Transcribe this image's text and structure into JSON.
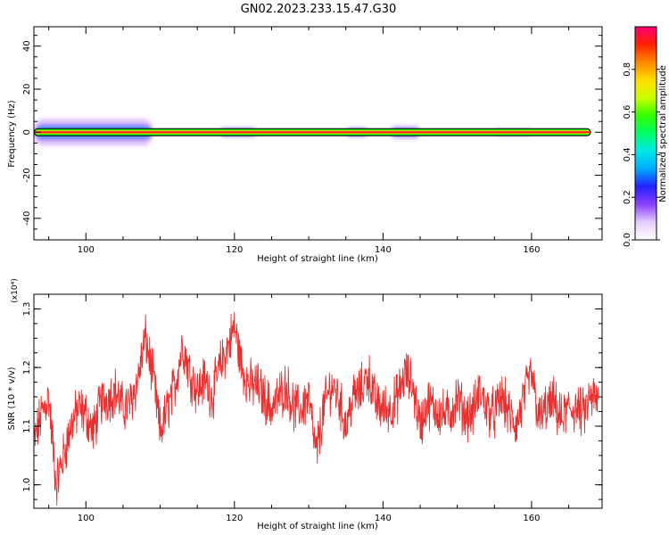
{
  "chart_data": [
    {
      "type": "heatmap",
      "title": "GN02.2023.233.15.47.G30",
      "xlabel": "Height of straight line (km)",
      "ylabel": "Frequency (Hz)",
      "xlim": [
        93,
        169.5
      ],
      "ylim": [
        -50,
        49
      ],
      "x_ticks": [
        100,
        120,
        140,
        160
      ],
      "y_ticks": [
        -40,
        -20,
        0,
        20,
        40
      ],
      "grid": false,
      "dominant_frequency_hz": 0,
      "x_extent_of_signal": [
        93,
        168
      ],
      "spread_regions": [
        {
          "x_from": 93,
          "x_to": 109,
          "spread_hz": 4
        },
        {
          "x_from": 118,
          "x_to": 123,
          "spread_hz": 1.5
        },
        {
          "x_from": 135,
          "x_to": 138,
          "spread_hz": 1.5
        },
        {
          "x_from": 141,
          "x_to": 145,
          "spread_hz": 2
        },
        {
          "x_from": 155,
          "x_to": 160,
          "spread_hz": 1
        }
      ],
      "colorbar": {
        "label": "Normalized spectral amplitude",
        "range": [
          0,
          1
        ],
        "ticks": [
          "0.0",
          "0.2",
          "0.4",
          "0.6",
          "0.8"
        ],
        "colors": [
          "#ffffff",
          "#e6ccff",
          "#8a3fff",
          "#2222ff",
          "#00aaff",
          "#00e6e6",
          "#00ff66",
          "#33ff00",
          "#ccff00",
          "#ffdd00",
          "#ff8800",
          "#ff2200",
          "#ff0077"
        ]
      }
    },
    {
      "type": "line",
      "xlabel": "Height of straight line (km)",
      "ylabel": "SNR (10 * v/v)",
      "y_multiplier": "(x10⁴)",
      "xlim": [
        93,
        169.5
      ],
      "ylim": [
        0.96,
        1.325
      ],
      "x_ticks": [
        100,
        120,
        140,
        160
      ],
      "y_ticks": [
        "1.0",
        "1.1",
        "1.2",
        "1.3"
      ],
      "grid": false,
      "series_color": "#e83030",
      "series": [
        {
          "x": [
            93,
            94,
            95,
            96,
            97,
            98,
            99,
            100,
            101,
            102,
            103,
            104,
            105,
            106,
            107,
            108,
            109,
            110,
            111,
            112,
            113,
            114,
            115,
            116,
            117,
            118,
            119,
            120,
            121,
            122,
            123,
            124,
            125,
            126,
            127,
            128,
            129,
            130,
            131,
            132,
            133,
            134,
            135,
            136,
            137,
            138,
            139,
            140,
            141,
            142,
            143,
            144,
            145,
            146,
            147,
            148,
            149,
            150,
            151,
            152,
            153,
            154,
            155,
            156,
            157,
            158,
            159,
            160,
            161,
            162,
            163,
            164,
            165,
            166,
            167,
            168,
            169
          ],
          "y": [
            1.07,
            1.12,
            1.15,
            1.0,
            1.05,
            1.1,
            1.13,
            1.12,
            1.09,
            1.14,
            1.15,
            1.16,
            1.13,
            1.14,
            1.18,
            1.25,
            1.19,
            1.09,
            1.13,
            1.17,
            1.24,
            1.19,
            1.16,
            1.18,
            1.15,
            1.2,
            1.23,
            1.27,
            1.2,
            1.17,
            1.17,
            1.15,
            1.13,
            1.15,
            1.17,
            1.13,
            1.13,
            1.15,
            1.05,
            1.13,
            1.17,
            1.15,
            1.1,
            1.15,
            1.16,
            1.19,
            1.14,
            1.13,
            1.13,
            1.15,
            1.19,
            1.17,
            1.1,
            1.14,
            1.13,
            1.12,
            1.12,
            1.15,
            1.12,
            1.12,
            1.16,
            1.13,
            1.12,
            1.15,
            1.12,
            1.1,
            1.15,
            1.19,
            1.11,
            1.13,
            1.14,
            1.11,
            1.13,
            1.13,
            1.12,
            1.15,
            1.14
          ]
        }
      ]
    }
  ]
}
